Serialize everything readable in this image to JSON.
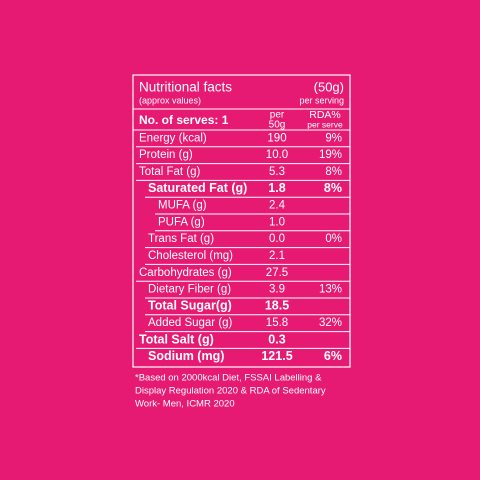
{
  "header": {
    "title": "Nutritional facts",
    "subtitle": "(approx values)",
    "serving_size": "(50g)",
    "serving_note": "per serving"
  },
  "columns": {
    "serves": "No. of serves: 1",
    "per_top": "per",
    "per_bottom": "50g",
    "rda_top": "RDA%",
    "rda_bottom": "per serve"
  },
  "rows": [
    {
      "nutrient": "Energy (kcal)",
      "per_50g": "190",
      "rda": "9%"
    },
    {
      "nutrient": "Protein (g)",
      "per_50g": "10.0",
      "rda": "19%"
    },
    {
      "nutrient": "Total Fat (g)",
      "per_50g": "5.3",
      "rda": "8%"
    },
    {
      "nutrient": "Saturated Fat (g)",
      "per_50g": "1.8",
      "rda": "8%"
    },
    {
      "nutrient": "MUFA (g)",
      "per_50g": "2.4"
    },
    {
      "nutrient": "PUFA (g)",
      "per_50g": "1.0"
    },
    {
      "nutrient": "Trans Fat (g)",
      "per_50g": "0.0",
      "rda": "0%"
    },
    {
      "nutrient": "Cholesterol (mg)",
      "per_50g": "2.1"
    },
    {
      "nutrient": "Carbohydrates (g)",
      "per_50g": "27.5"
    },
    {
      "nutrient": "Dietary Fiber (g)",
      "per_50g": "3.9",
      "rda": "13%"
    },
    {
      "nutrient": "Total Sugar(g)",
      "per_50g": "18.5"
    },
    {
      "nutrient": "Added Sugar (g)",
      "per_50g": "15.8",
      "rda": "32%"
    },
    {
      "nutrient": "Total Salt (g)",
      "per_50g": "0.3"
    },
    {
      "nutrient": "Sodium (mg)",
      "per_50g": "121.5",
      "rda": "6%"
    }
  ],
  "footnote": [
    "*Based on 2000kcal Diet, FSSAI Labelling &",
    "Display Regulation 2020 & RDA of Sedentary",
    "Work- Men, ICMR 2020"
  ]
}
